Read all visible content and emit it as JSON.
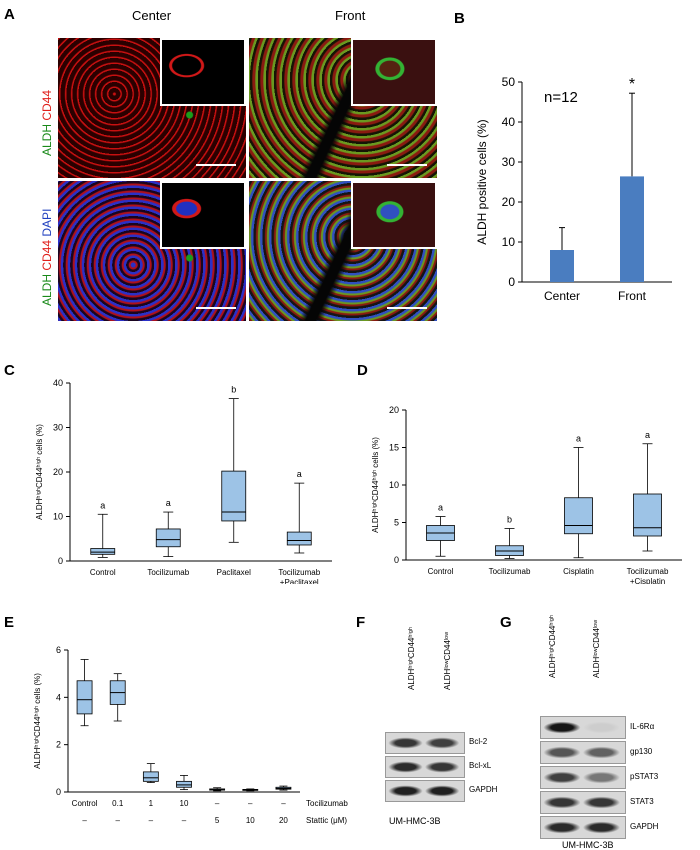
{
  "panel_labels": {
    "A": "A",
    "B": "B",
    "C": "C",
    "D": "D",
    "E": "E",
    "F": "F",
    "G": "G"
  },
  "panelA": {
    "col_center": "Center",
    "col_front": "Front",
    "row1_label": {
      "green": "ALDH",
      "red": "CD44"
    },
    "row2_label": {
      "green": "ALDH",
      "red": "CD44",
      "blue": "DAPI"
    }
  },
  "chart_data": [
    {
      "panel": "B",
      "type": "bar",
      "categories": [
        "Center",
        "Front"
      ],
      "values": [
        8.0,
        26.4
      ],
      "error_upper": [
        13.6,
        47.2
      ],
      "ylabel": "ALDH positive cells (%)",
      "ylim": [
        0,
        50
      ],
      "yticks": [
        "0",
        "10",
        "20",
        "30",
        "40",
        "50"
      ],
      "annotation": "n=12",
      "significance": [
        "",
        "*"
      ],
      "color": "#4a7dc0"
    },
    {
      "panel": "C",
      "type": "box",
      "categories": [
        "Control",
        "Tocilizumab",
        "Paclitaxel",
        "Tocilizumab\n+Paclitaxel"
      ],
      "boxes": [
        {
          "min": 0.8,
          "q1": 1.5,
          "median": 2.0,
          "q3": 2.8,
          "max": 10.5
        },
        {
          "min": 1.0,
          "q1": 3.2,
          "median": 4.8,
          "q3": 7.2,
          "max": 11.0
        },
        {
          "min": 4.2,
          "q1": 9.0,
          "median": 11.0,
          "q3": 20.2,
          "max": 36.5
        },
        {
          "min": 1.8,
          "q1": 3.6,
          "median": 4.6,
          "q3": 6.5,
          "max": 17.5
        }
      ],
      "letters": [
        "a",
        "a",
        "b",
        "a"
      ],
      "ylabel": "ALDHʰⁱᵍʰCD44ʰⁱᵍʰ cells (%)",
      "ylim": [
        0,
        40
      ],
      "yticks": [
        "0",
        "10",
        "20",
        "30",
        "40"
      ]
    },
    {
      "panel": "D",
      "type": "box",
      "categories": [
        "Control",
        "Tocilizumab",
        "Cisplatin",
        "Tocilizumab\n+Cisplatin"
      ],
      "boxes": [
        {
          "min": 0.5,
          "q1": 2.6,
          "median": 3.6,
          "q3": 4.6,
          "max": 5.8
        },
        {
          "min": 0.2,
          "q1": 0.6,
          "median": 1.2,
          "q3": 1.9,
          "max": 4.2
        },
        {
          "min": 0.3,
          "q1": 3.5,
          "median": 4.6,
          "q3": 8.3,
          "max": 15.0
        },
        {
          "min": 1.2,
          "q1": 3.2,
          "median": 4.3,
          "q3": 8.8,
          "max": 15.5
        }
      ],
      "letters": [
        "a",
        "b",
        "a",
        "a"
      ],
      "ylabel": "ALDHʰⁱᵍʰCD44ʰⁱᵍʰ cells (%)",
      "ylim": [
        0,
        20
      ],
      "yticks": [
        "0",
        "5",
        "10",
        "15",
        "20"
      ]
    },
    {
      "panel": "E",
      "type": "box",
      "categories": [
        "Control",
        "0.1",
        "1",
        "10",
        "–",
        "–",
        "–"
      ],
      "static_row": [
        "–",
        "–",
        "–",
        "–",
        "5",
        "10",
        "20"
      ],
      "boxes": [
        {
          "min": 2.8,
          "q1": 3.3,
          "median": 3.9,
          "q3": 4.7,
          "max": 5.6
        },
        {
          "min": 3.0,
          "q1": 3.7,
          "median": 4.2,
          "q3": 4.7,
          "max": 5.0
        },
        {
          "min": 0.4,
          "q1": 0.45,
          "median": 0.6,
          "q3": 0.85,
          "max": 1.2
        },
        {
          "min": 0.1,
          "q1": 0.2,
          "median": 0.3,
          "q3": 0.45,
          "max": 0.7
        },
        {
          "min": 0.05,
          "q1": 0.08,
          "median": 0.1,
          "q3": 0.13,
          "max": 0.18
        },
        {
          "min": 0.05,
          "q1": 0.07,
          "median": 0.09,
          "q3": 0.11,
          "max": 0.13
        },
        {
          "min": 0.08,
          "q1": 0.12,
          "median": 0.15,
          "q3": 0.2,
          "max": 0.25
        }
      ],
      "row1_label": "Tocilizumab (μM)",
      "row2_label": "Stattic (μM)",
      "ylabel": "ALDHʰⁱᵍʰCD44ʰⁱᵍʰ cells (%)",
      "ylim": [
        0,
        6
      ],
      "yticks": [
        "0",
        "2",
        "4",
        "6"
      ]
    }
  ],
  "panelF": {
    "lanes": [
      "ALDHʰⁱᵍʰCD44ʰⁱᵍʰ",
      "ALDHˡᵒʷCD44ˡᵒʷ"
    ],
    "bands": [
      "Bcl-2",
      "Bcl-xL",
      "GAPDH"
    ],
    "cell_line": "UM-HMC-3B"
  },
  "panelG": {
    "lanes": [
      "ALDHʰⁱᵍʰCD44ʰⁱᵍʰ",
      "ALDHˡᵒʷCD44ˡᵒʷ"
    ],
    "bands": [
      "IL-6Rα",
      "gp130",
      "pSTAT3",
      "STAT3",
      "GAPDH"
    ],
    "cell_line": "UM-HMC-3B"
  }
}
